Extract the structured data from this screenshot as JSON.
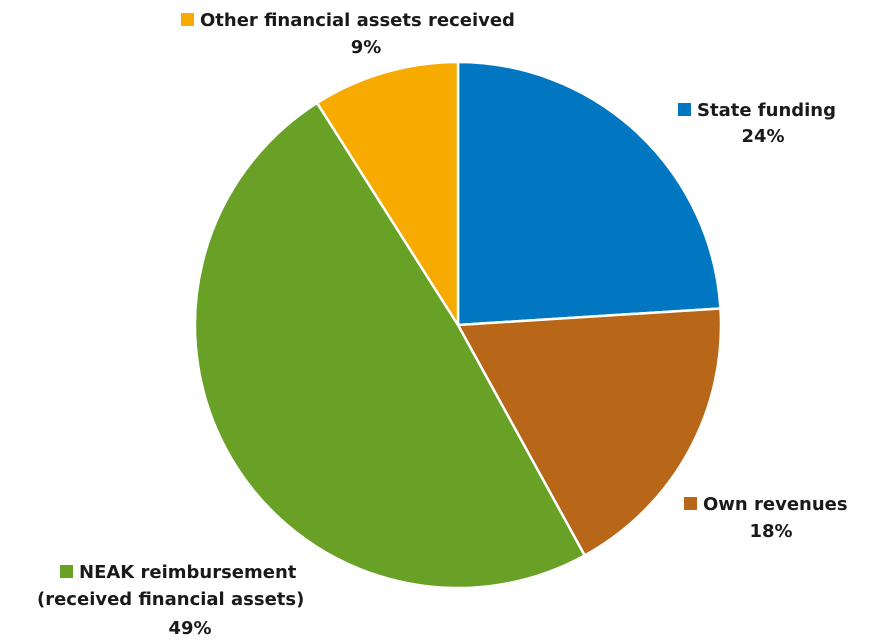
{
  "chart_data": {
    "type": "pie",
    "title": "",
    "slices": [
      {
        "label": "State funding",
        "value": 24,
        "value_label": "24%",
        "color": "#0077c0"
      },
      {
        "label": "Own revenues",
        "value": 18,
        "value_label": "18%",
        "color": "#b86618"
      },
      {
        "label": "NEAK reimbursement (received financial assets)",
        "label_lines": [
          "NEAK reimbursement",
          "(received financial assets)"
        ],
        "value": 49,
        "value_label": "49%",
        "color": "#68a126"
      },
      {
        "label": "Other financial assets received",
        "value": 9,
        "value_label": "9%",
        "color": "#f7aa00"
      }
    ],
    "start_angle": "12 o'clock",
    "direction": "clockwise",
    "legend": "labels beside each slice with colored square markers"
  }
}
